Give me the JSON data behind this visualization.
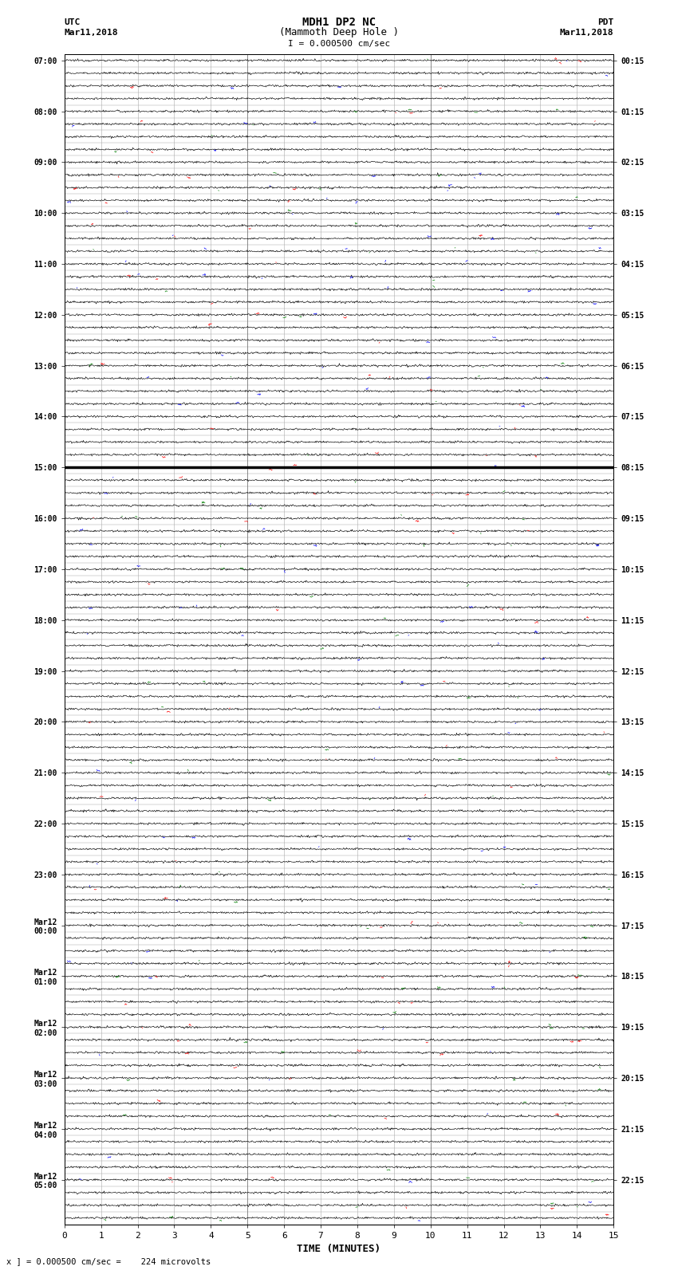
{
  "title_line1": "MDH1 DP2 NC",
  "title_line2": "(Mammoth Deep Hole )",
  "scale_label": "I = 0.000500 cm/sec",
  "left_header_line1": "UTC",
  "left_header_line2": "Mar11,2018",
  "right_header_line1": "PDT",
  "right_header_line2": "Mar11,2018",
  "xlabel": "TIME (MINUTES)",
  "bottom_note": "x ] = 0.000500 cm/sec =    224 microvolts",
  "x_min": 0,
  "x_max": 15,
  "x_ticks": [
    0,
    1,
    2,
    3,
    4,
    5,
    6,
    7,
    8,
    9,
    10,
    11,
    12,
    13,
    14,
    15
  ],
  "background_color": "#ffffff",
  "trace_color": "#000000",
  "n_traces": 92,
  "thick_trace_index": 32,
  "grid_color": "#888888",
  "minor_grid_color": "#bbbbbb",
  "spike_colors": [
    "#ff0000",
    "#0000ff",
    "#008000"
  ],
  "fig_width": 8.5,
  "fig_height": 16.13,
  "dpi": 100
}
